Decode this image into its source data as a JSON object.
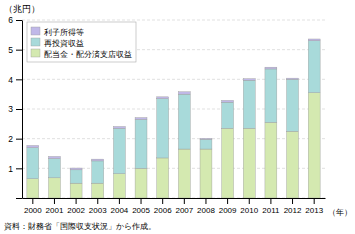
{
  "chart_data": {
    "type": "bar",
    "stacked": true,
    "categories": [
      "2000",
      "2001",
      "2002",
      "2003",
      "2004",
      "2005",
      "2006",
      "2007",
      "2008",
      "2009",
      "2010",
      "2011",
      "2012",
      "2013"
    ],
    "series": [
      {
        "name": "配当金・配分済支店収益",
        "color": "#d4e9b0",
        "values": [
          0.65,
          0.68,
          0.5,
          0.5,
          0.82,
          1.0,
          1.35,
          1.65,
          1.65,
          2.35,
          2.35,
          2.55,
          2.25,
          3.55
        ]
      },
      {
        "name": "再投資収益",
        "color": "#a8dada",
        "values": [
          1.05,
          0.65,
          0.45,
          0.75,
          1.53,
          1.65,
          2.0,
          1.85,
          0.33,
          0.88,
          1.62,
          1.8,
          1.75,
          1.75
        ]
      },
      {
        "name": "利子所得等",
        "color": "#c0b8e8",
        "values": [
          0.07,
          0.07,
          0.06,
          0.06,
          0.06,
          0.06,
          0.06,
          0.08,
          0.03,
          0.06,
          0.05,
          0.06,
          0.04,
          0.06
        ]
      }
    ],
    "xlabel": "（年）",
    "ylabel": "（兆円）",
    "ylim": [
      0,
      6
    ],
    "yticks": [
      {
        "value": 0,
        "label": ""
      },
      1,
      2,
      3,
      4,
      5,
      6
    ],
    "grid": true,
    "legend": "upper left",
    "footnote": "資料：財務省「国際収支状況」から作成。"
  }
}
